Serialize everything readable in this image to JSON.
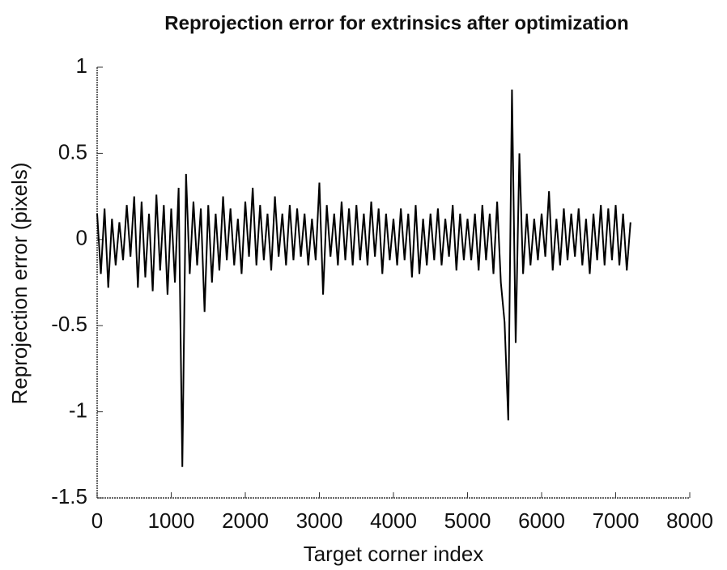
{
  "chart_data": {
    "type": "line",
    "title": "Reprojection error for extrinsics after optimization",
    "xlabel": "Target corner index",
    "ylabel": "Reprojection error (pixels)",
    "x": [
      0,
      50,
      100,
      150,
      200,
      250,
      300,
      350,
      400,
      450,
      500,
      550,
      600,
      650,
      700,
      750,
      800,
      850,
      900,
      950,
      1000,
      1050,
      1100,
      1150,
      1200,
      1250,
      1300,
      1350,
      1400,
      1450,
      1500,
      1550,
      1600,
      1650,
      1700,
      1750,
      1800,
      1850,
      1900,
      1950,
      2000,
      2050,
      2100,
      2150,
      2200,
      2250,
      2300,
      2350,
      2400,
      2450,
      2500,
      2550,
      2600,
      2650,
      2700,
      2750,
      2800,
      2850,
      2900,
      2950,
      3000,
      3050,
      3100,
      3150,
      3200,
      3250,
      3300,
      3350,
      3400,
      3450,
      3500,
      3550,
      3600,
      3650,
      3700,
      3750,
      3800,
      3850,
      3900,
      3950,
      4000,
      4050,
      4100,
      4150,
      4200,
      4250,
      4300,
      4350,
      4400,
      4450,
      4500,
      4550,
      4600,
      4650,
      4700,
      4750,
      4800,
      4850,
      4900,
      4950,
      5000,
      5050,
      5100,
      5150,
      5200,
      5250,
      5300,
      5350,
      5400,
      5450,
      5500,
      5550,
      5600,
      5650,
      5700,
      5750,
      5800,
      5850,
      5900,
      5950,
      6000,
      6050,
      6100,
      6150,
      6200,
      6250,
      6300,
      6350,
      6400,
      6450,
      6500,
      6550,
      6600,
      6650,
      6700,
      6750,
      6800,
      6850,
      6900,
      6950,
      7000,
      7050,
      7100,
      7150,
      7200
    ],
    "series": [
      {
        "color": "#000000",
        "values": [
          0.15,
          -0.2,
          0.18,
          -0.28,
          0.12,
          -0.15,
          0.1,
          -0.12,
          0.2,
          -0.1,
          0.25,
          -0.28,
          0.22,
          -0.22,
          0.15,
          -0.3,
          0.26,
          -0.18,
          0.2,
          -0.32,
          0.18,
          -0.25,
          0.3,
          -1.32,
          0.38,
          -0.2,
          0.22,
          -0.15,
          0.18,
          -0.42,
          0.2,
          -0.25,
          0.15,
          -0.18,
          0.25,
          -0.12,
          0.18,
          -0.15,
          0.12,
          -0.2,
          0.22,
          -0.1,
          0.3,
          -0.15,
          0.2,
          -0.12,
          0.15,
          -0.18,
          0.25,
          -0.1,
          0.15,
          -0.15,
          0.2,
          -0.12,
          0.18,
          -0.1,
          0.15,
          -0.15,
          0.12,
          -0.12,
          0.33,
          -0.32,
          0.2,
          -0.1,
          0.15,
          -0.15,
          0.22,
          -0.12,
          0.18,
          -0.15,
          0.2,
          -0.12,
          0.15,
          -0.15,
          0.22,
          -0.1,
          0.18,
          -0.2,
          0.15,
          -0.12,
          0.12,
          -0.15,
          0.18,
          -0.12,
          0.15,
          -0.22,
          0.2,
          -0.2,
          0.12,
          -0.15,
          0.15,
          -0.12,
          0.18,
          -0.15,
          0.12,
          -0.1,
          0.2,
          -0.18,
          0.15,
          -0.12,
          0.12,
          -0.12,
          0.15,
          -0.18,
          0.2,
          -0.12,
          0.15,
          -0.2,
          0.22,
          -0.25,
          -0.48,
          -1.05,
          0.87,
          -0.6,
          0.5,
          -0.2,
          0.15,
          -0.15,
          0.12,
          -0.12,
          0.15,
          -0.1,
          0.28,
          -0.18,
          0.12,
          -0.15,
          0.18,
          -0.12,
          0.15,
          -0.1,
          0.18,
          -0.15,
          0.12,
          -0.2,
          0.15,
          -0.12,
          0.2,
          -0.15,
          0.18,
          -0.12,
          0.2,
          -0.15,
          0.15,
          -0.18,
          0.1
        ]
      }
    ],
    "xlim": [
      0,
      8000
    ],
    "xticks": [
      0,
      1000,
      2000,
      3000,
      4000,
      5000,
      6000,
      7000,
      8000
    ],
    "ylim": [
      -1.5,
      1
    ],
    "yticks": [
      -1.5,
      -1,
      -0.5,
      0,
      0.5,
      1
    ]
  }
}
